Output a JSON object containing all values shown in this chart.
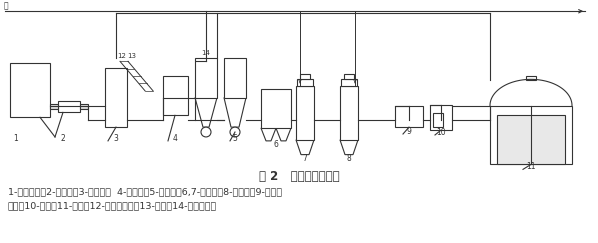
{
  "title": "图 2   气化工艺流程图",
  "caption_line1": "1-窑气装置；2-分气缸；3-气化炉；  4-贮灰槽；5-除尘器；6,7-洗涤塔；8-过滤器；9-罗茨鼓",
  "caption_line2": "风机；10-水封；11-气柜；12-螺旋进料器；13-料仓；14-旋风分离器",
  "bg_color": "#ffffff",
  "line_color": "#333333",
  "title_fontsize": 8.5,
  "caption_fontsize": 6.8,
  "water_label": "水"
}
